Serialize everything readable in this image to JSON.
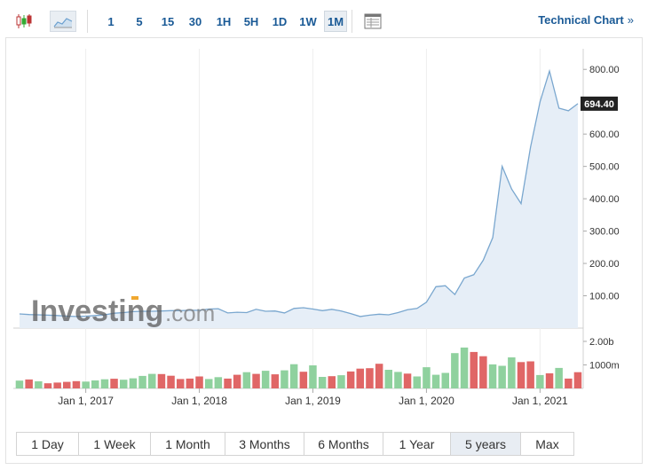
{
  "toolbar": {
    "timeframes": [
      "1",
      "5",
      "15",
      "30",
      "1H",
      "5H",
      "1D",
      "1W",
      "1M"
    ],
    "active_timeframe": "1M",
    "technical_chart_label": "Technical Chart",
    "technical_chart_chevron": "»"
  },
  "watermark": {
    "brand": "Investing",
    "suffix": ".com"
  },
  "last_price_label": "694.40",
  "colors": {
    "line": "#7aa7cf",
    "area": "#e6eef7",
    "up_volume": "#8fd19e",
    "down_volume": "#e06666",
    "accent": "#1a5a96",
    "price_badge": "#222222"
  },
  "chart_data": {
    "type": "area",
    "price_axis": {
      "ticks": [
        "100.00",
        "200.00",
        "300.00",
        "400.00",
        "500.00",
        "600.00",
        "700.00",
        "800.00"
      ],
      "ylim": [
        0,
        850
      ]
    },
    "volume_axis": {
      "ticks": [
        "1000m",
        "2.00b"
      ],
      "ylim": [
        0,
        2.3
      ]
    },
    "x_ticks": [
      {
        "label": "Jan 1, 2017",
        "index": 7
      },
      {
        "label": "Jan 1, 2018",
        "index": 19
      },
      {
        "label": "Jan 1, 2019",
        "index": 31
      },
      {
        "label": "Jan 1, 2020",
        "index": 43
      },
      {
        "label": "Jan 1, 2021",
        "index": 55
      }
    ],
    "price": [
      44,
      42,
      41,
      40,
      39,
      37,
      36,
      37,
      39,
      41,
      46,
      48,
      51,
      52,
      52,
      53,
      54,
      54,
      55,
      55,
      59,
      60,
      47,
      49,
      48,
      58,
      52,
      53,
      47,
      61,
      63,
      59,
      54,
      58,
      53,
      45,
      36,
      40,
      43,
      41,
      48,
      57,
      61,
      80,
      128,
      131,
      104,
      155,
      165,
      210,
      280,
      500,
      430,
      385,
      560,
      700,
      795,
      680,
      672,
      694
    ],
    "volume": [
      {
        "v": 0.33,
        "dir": "up"
      },
      {
        "v": 0.38,
        "dir": "down"
      },
      {
        "v": 0.3,
        "dir": "up"
      },
      {
        "v": 0.22,
        "dir": "down"
      },
      {
        "v": 0.25,
        "dir": "down"
      },
      {
        "v": 0.28,
        "dir": "down"
      },
      {
        "v": 0.31,
        "dir": "down"
      },
      {
        "v": 0.29,
        "dir": "up"
      },
      {
        "v": 0.34,
        "dir": "up"
      },
      {
        "v": 0.39,
        "dir": "up"
      },
      {
        "v": 0.41,
        "dir": "down"
      },
      {
        "v": 0.37,
        "dir": "up"
      },
      {
        "v": 0.43,
        "dir": "up"
      },
      {
        "v": 0.53,
        "dir": "up"
      },
      {
        "v": 0.62,
        "dir": "up"
      },
      {
        "v": 0.61,
        "dir": "down"
      },
      {
        "v": 0.54,
        "dir": "down"
      },
      {
        "v": 0.4,
        "dir": "down"
      },
      {
        "v": 0.42,
        "dir": "down"
      },
      {
        "v": 0.51,
        "dir": "down"
      },
      {
        "v": 0.4,
        "dir": "up"
      },
      {
        "v": 0.48,
        "dir": "up"
      },
      {
        "v": 0.42,
        "dir": "down"
      },
      {
        "v": 0.58,
        "dir": "down"
      },
      {
        "v": 0.69,
        "dir": "up"
      },
      {
        "v": 0.62,
        "dir": "down"
      },
      {
        "v": 0.75,
        "dir": "up"
      },
      {
        "v": 0.6,
        "dir": "down"
      },
      {
        "v": 0.77,
        "dir": "up"
      },
      {
        "v": 1.03,
        "dir": "up"
      },
      {
        "v": 0.71,
        "dir": "down"
      },
      {
        "v": 0.98,
        "dir": "up"
      },
      {
        "v": 0.49,
        "dir": "up"
      },
      {
        "v": 0.52,
        "dir": "down"
      },
      {
        "v": 0.56,
        "dir": "up"
      },
      {
        "v": 0.72,
        "dir": "down"
      },
      {
        "v": 0.84,
        "dir": "down"
      },
      {
        "v": 0.86,
        "dir": "down"
      },
      {
        "v": 1.05,
        "dir": "down"
      },
      {
        "v": 0.79,
        "dir": "up"
      },
      {
        "v": 0.7,
        "dir": "up"
      },
      {
        "v": 0.63,
        "dir": "down"
      },
      {
        "v": 0.51,
        "dir": "up"
      },
      {
        "v": 0.9,
        "dir": "up"
      },
      {
        "v": 0.58,
        "dir": "up"
      },
      {
        "v": 0.66,
        "dir": "up"
      },
      {
        "v": 1.5,
        "dir": "up"
      },
      {
        "v": 1.74,
        "dir": "up"
      },
      {
        "v": 1.55,
        "dir": "down"
      },
      {
        "v": 1.37,
        "dir": "down"
      },
      {
        "v": 1.02,
        "dir": "up"
      },
      {
        "v": 0.96,
        "dir": "up"
      },
      {
        "v": 1.32,
        "dir": "up"
      },
      {
        "v": 1.12,
        "dir": "down"
      },
      {
        "v": 1.15,
        "dir": "down"
      },
      {
        "v": 0.57,
        "dir": "up"
      },
      {
        "v": 0.64,
        "dir": "down"
      },
      {
        "v": 0.87,
        "dir": "up"
      },
      {
        "v": 0.42,
        "dir": "down"
      },
      {
        "v": 0.69,
        "dir": "down"
      }
    ]
  },
  "range_buttons": [
    "1 Day",
    "1 Week",
    "1 Month",
    "3 Months",
    "6 Months",
    "1 Year",
    "5 years",
    "Max"
  ],
  "active_range": "5 years"
}
